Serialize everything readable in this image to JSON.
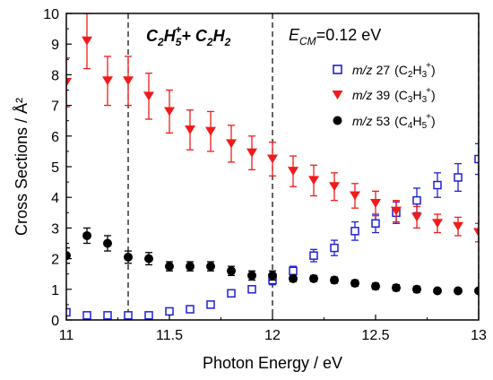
{
  "chart_data": {
    "type": "scatter",
    "xlabel": "Photon Energy / eV",
    "ylabel": "Cross Sections / Å²",
    "xlim": [
      11,
      13
    ],
    "ylim": [
      0,
      10
    ],
    "x_ticks": [
      "11",
      "11.5",
      "12",
      "12.5",
      "13"
    ],
    "y_ticks": [
      "0",
      "1",
      "2",
      "3",
      "4",
      "5",
      "6",
      "7",
      "8",
      "9",
      "10"
    ],
    "grid": false,
    "legend_position": "top-right",
    "vertical_lines": [
      11.3,
      12.0,
      13.0
    ],
    "annotations": {
      "reaction": {
        "a": "C",
        "b": "2",
        "c": "H",
        "d": "5",
        "e": "+",
        "f": "+ C",
        "g": "2",
        "h": "H",
        "i": "2"
      },
      "energy": {
        "e": "E",
        "sub": "CM",
        "value": "=0.12 eV"
      }
    },
    "series": [
      {
        "name_mz": "m/z",
        "name_num": "27",
        "name_formula": "(C",
        "name_s1": "2",
        "name_mid": "H",
        "name_s2": "3",
        "name_sup": "+",
        "name_end": ")",
        "color": "#1f1fd6",
        "marker": "open-square",
        "x": [
          11.0,
          11.1,
          11.2,
          11.3,
          11.4,
          11.5,
          11.6,
          11.7,
          11.8,
          11.9,
          12.0,
          12.1,
          12.2,
          12.3,
          12.4,
          12.5,
          12.6,
          12.7,
          12.8,
          12.9,
          13.0
        ],
        "y": [
          0.25,
          0.15,
          0.15,
          0.15,
          0.15,
          0.28,
          0.35,
          0.5,
          0.87,
          1.0,
          1.3,
          1.6,
          2.1,
          2.35,
          2.9,
          3.15,
          3.5,
          3.9,
          4.4,
          4.65,
          5.25
        ],
        "err": [
          0.05,
          0.05,
          0.05,
          0.05,
          0.05,
          0.05,
          0.05,
          0.05,
          0.1,
          0.1,
          0.15,
          0.15,
          0.2,
          0.25,
          0.3,
          0.3,
          0.35,
          0.4,
          0.4,
          0.45,
          0.5
        ]
      },
      {
        "name_mz": "m/z",
        "name_num": "39",
        "name_formula": "(C",
        "name_s1": "3",
        "name_mid": "H",
        "name_s2": "3",
        "name_sup": "+",
        "name_end": ")",
        "color": "#f21b1b",
        "marker": "down-triangle",
        "x": [
          11.0,
          11.1,
          11.2,
          11.3,
          11.4,
          11.5,
          11.6,
          11.7,
          11.8,
          11.9,
          12.0,
          12.1,
          12.2,
          12.3,
          12.4,
          12.5,
          12.6,
          12.7,
          12.8,
          12.9,
          13.0
        ],
        "y": [
          7.75,
          9.1,
          7.8,
          7.8,
          7.3,
          6.8,
          6.2,
          6.15,
          5.75,
          5.45,
          5.25,
          4.85,
          4.55,
          4.35,
          4.05,
          3.8,
          3.55,
          3.35,
          3.15,
          3.05,
          2.85
        ],
        "err": [
          0.8,
          0.9,
          0.8,
          0.8,
          0.75,
          0.7,
          0.65,
          0.65,
          0.6,
          0.55,
          0.55,
          0.5,
          0.5,
          0.45,
          0.4,
          0.4,
          0.35,
          0.35,
          0.3,
          0.3,
          0.3
        ]
      },
      {
        "name_mz": "m/z",
        "name_num": "53",
        "name_formula": "(C",
        "name_s1": "4",
        "name_mid": "H",
        "name_s2": "5",
        "name_sup": "+",
        "name_end": ")",
        "color": "#000000",
        "marker": "filled-circle",
        "x": [
          11.0,
          11.1,
          11.2,
          11.3,
          11.4,
          11.5,
          11.6,
          11.7,
          11.8,
          11.9,
          12.0,
          12.1,
          12.2,
          12.3,
          12.4,
          12.5,
          12.6,
          12.7,
          12.8,
          12.9,
          13.0
        ],
        "y": [
          2.1,
          2.75,
          2.5,
          2.05,
          2.0,
          1.75,
          1.75,
          1.75,
          1.6,
          1.45,
          1.45,
          1.35,
          1.35,
          1.3,
          1.2,
          1.1,
          1.05,
          1.0,
          0.95,
          0.95,
          0.95
        ],
        "err": [
          0.25,
          0.25,
          0.25,
          0.2,
          0.2,
          0.15,
          0.15,
          0.15,
          0.15,
          0.15,
          0.15,
          0.1,
          0.1,
          0.1,
          0.1,
          0.1,
          0.1,
          0.1,
          0.05,
          0.05,
          0.05
        ]
      }
    ]
  }
}
